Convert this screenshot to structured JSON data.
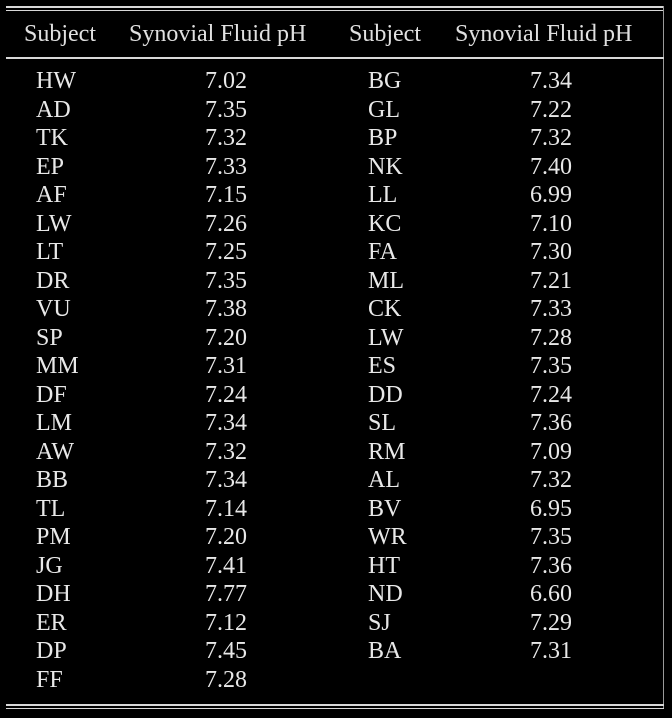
{
  "table": {
    "headers": [
      "Subject",
      "Synovial Fluid pH",
      "Subject",
      "Synovial Fluid pH"
    ],
    "rows": [
      [
        "HW",
        "7.02",
        "BG",
        "7.34"
      ],
      [
        "AD",
        "7.35",
        "GL",
        "7.22"
      ],
      [
        "TK",
        "7.32",
        "BP",
        "7.32"
      ],
      [
        "EP",
        "7.33",
        "NK",
        "7.40"
      ],
      [
        "AF",
        "7.15",
        "LL",
        "6.99"
      ],
      [
        "LW",
        "7.26",
        "KC",
        "7.10"
      ],
      [
        "LT",
        "7.25",
        "FA",
        "7.30"
      ],
      [
        "DR",
        "7.35",
        "ML",
        "7.21"
      ],
      [
        "VU",
        "7.38",
        "CK",
        "7.33"
      ],
      [
        "SP",
        "7.20",
        "LW",
        "7.28"
      ],
      [
        "MM",
        "7.31",
        "ES",
        "7.35"
      ],
      [
        "DF",
        "7.24",
        "DD",
        "7.24"
      ],
      [
        "LM",
        "7.34",
        "SL",
        "7.36"
      ],
      [
        "AW",
        "7.32",
        "RM",
        "7.09"
      ],
      [
        "BB",
        "7.34",
        "AL",
        "7.32"
      ],
      [
        "TL",
        "7.14",
        "BV",
        "6.95"
      ],
      [
        "PM",
        "7.20",
        "WR",
        "7.35"
      ],
      [
        "JG",
        "7.41",
        "HT",
        "7.36"
      ],
      [
        "DH",
        "7.77",
        "ND",
        "6.60"
      ],
      [
        "ER",
        "7.12",
        "SJ",
        "7.29"
      ],
      [
        "DP",
        "7.45",
        "BA",
        "7.31"
      ],
      [
        "FF",
        "7.28",
        "",
        ""
      ]
    ]
  }
}
